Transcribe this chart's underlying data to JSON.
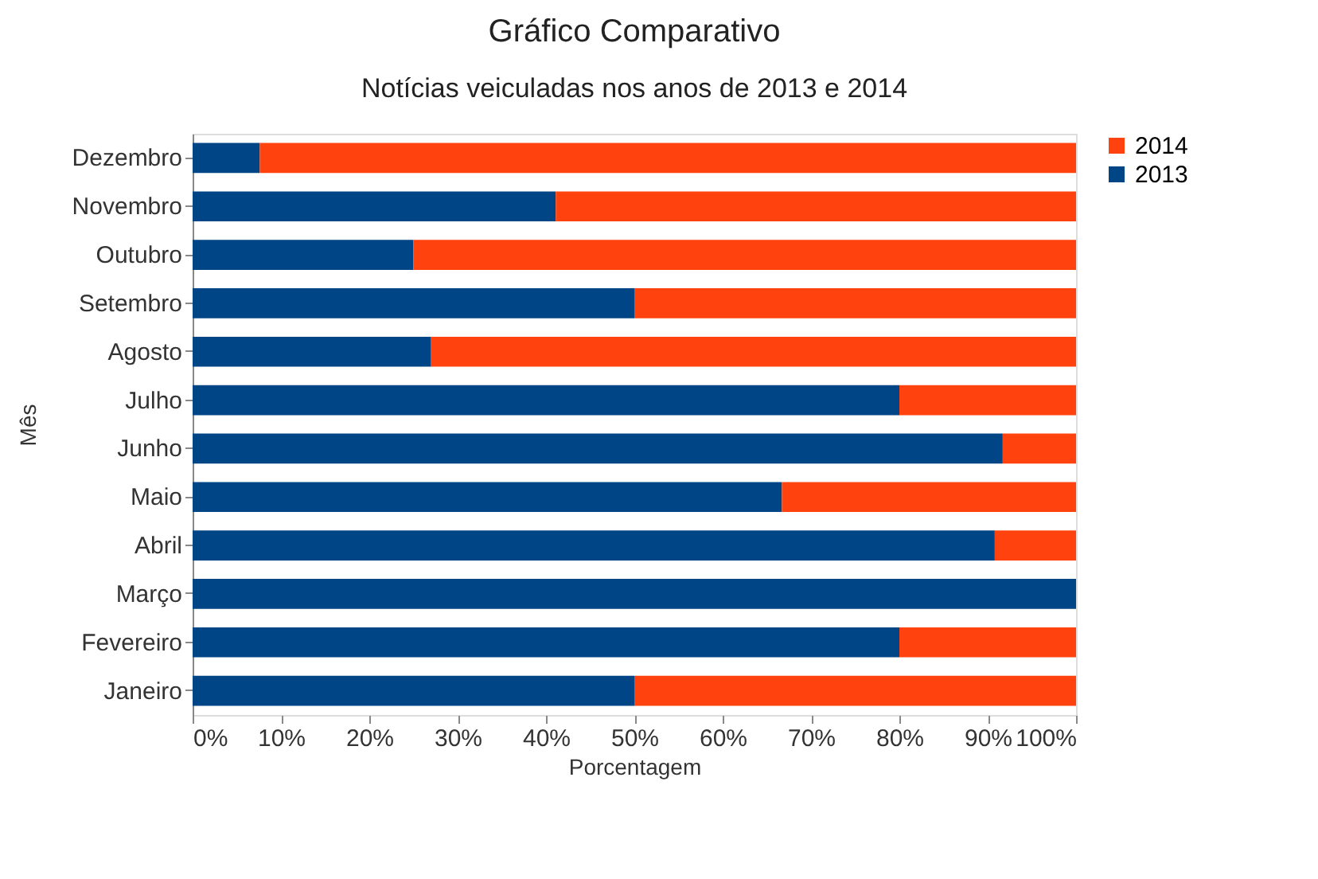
{
  "chart_data": {
    "type": "bar",
    "orientation": "horizontal",
    "stacked": true,
    "title": "Gráfico Comparativo",
    "subtitle": "Notícias veiculadas nos anos de 2013 e 2014",
    "xlabel": "Porcentagem",
    "ylabel": "Mês",
    "categories": [
      "Dezembro",
      "Novembro",
      "Outubro",
      "Setembro",
      "Agosto",
      "Julho",
      "Junho",
      "Maio",
      "Abril",
      "Março",
      "Fevereiro",
      "Janeiro"
    ],
    "series": [
      {
        "name": "2013",
        "color": "#004586",
        "values": [
          7.6,
          41.1,
          25,
          50,
          27,
          80,
          91.7,
          66.7,
          90.8,
          100,
          80,
          50
        ]
      },
      {
        "name": "2014",
        "color": "#ff420e",
        "values": [
          92.4,
          58.9,
          75,
          50,
          73,
          20,
          8.3,
          33.3,
          9.2,
          0,
          20,
          50
        ]
      }
    ],
    "xlim": [
      0,
      100
    ],
    "xticks": [
      {
        "value": 0,
        "label": "0%"
      },
      {
        "value": 10,
        "label": "10%"
      },
      {
        "value": 20,
        "label": "20%"
      },
      {
        "value": 30,
        "label": "30%"
      },
      {
        "value": 40,
        "label": "40%"
      },
      {
        "value": 50,
        "label": "50%"
      },
      {
        "value": 60,
        "label": "60%"
      },
      {
        "value": 70,
        "label": "70%"
      },
      {
        "value": 80,
        "label": "80%"
      },
      {
        "value": 90,
        "label": "90%"
      },
      {
        "value": 100,
        "label": "100%"
      }
    ],
    "grid": false,
    "legend": "right"
  }
}
